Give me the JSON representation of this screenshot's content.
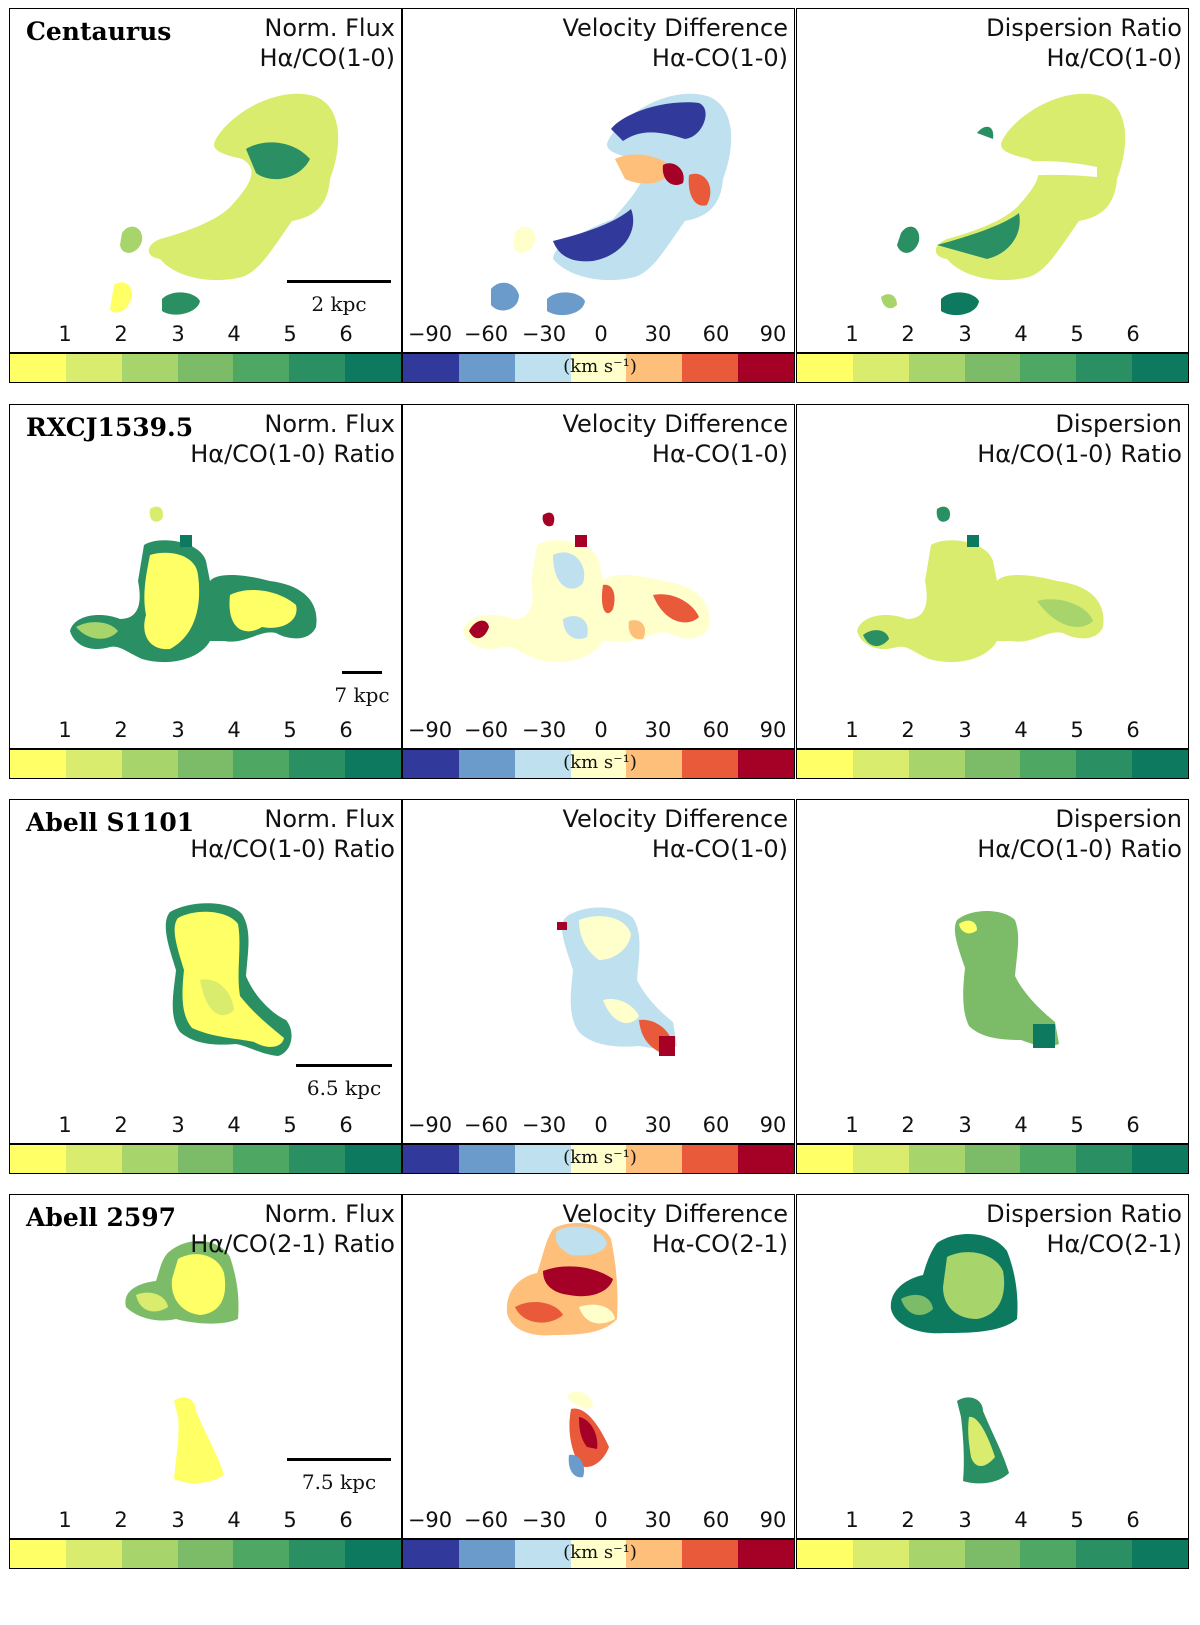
{
  "flux_colors": [
    "#ffff66",
    "#d9ec6e",
    "#a8d46c",
    "#7cbc69",
    "#4ea864",
    "#2a9063",
    "#0d7a60"
  ],
  "vel_colors": [
    "#31399a",
    "#6a9bcb",
    "#bfe0ee",
    "#ffffcc",
    "#fdbf79",
    "#e85a3a",
    "#a50026"
  ],
  "ratio_ticks": [
    "1",
    "2",
    "3",
    "4",
    "5",
    "6"
  ],
  "vel_ticks": [
    "−90",
    "−60",
    "−30",
    "0",
    "30",
    "60",
    "90"
  ],
  "vel_unit": "(km s⁻¹)",
  "rows": [
    {
      "galaxy": "Centaurus",
      "flux_title": [
        "Norm. Flux",
        "Hα/CO(1-0)"
      ],
      "vel_title": [
        "Velocity Difference",
        "Hα-CO(1-0)"
      ],
      "disp_title": [
        "Dispersion Ratio",
        "Hα/CO(1-0)"
      ],
      "scale": "2 kpc"
    },
    {
      "galaxy": "RXCJ1539.5",
      "flux_title": [
        "Norm. Flux",
        "Hα/CO(1-0) Ratio"
      ],
      "vel_title": [
        "Velocity Difference",
        "Hα-CO(1-0)"
      ],
      "disp_title": [
        "Dispersion",
        "Hα/CO(1-0) Ratio"
      ],
      "scale": "7 kpc"
    },
    {
      "galaxy": "Abell S1101",
      "flux_title": [
        "Norm. Flux",
        "Hα/CO(1-0) Ratio"
      ],
      "vel_title": [
        "Velocity Difference",
        "Hα-CO(1-0)"
      ],
      "disp_title": [
        "Dispersion",
        "Hα/CO(1-0) Ratio"
      ],
      "scale": "6.5 kpc"
    },
    {
      "galaxy": "Abell 2597",
      "flux_title": [
        "Norm. Flux",
        "Hα/CO(2-1) Ratio"
      ],
      "vel_title": [
        "Velocity Difference",
        "Hα-CO(2-1)"
      ],
      "disp_title": [
        "Dispersion Ratio",
        "Hα/CO(2-1)"
      ],
      "scale": "7.5 kpc"
    }
  ]
}
